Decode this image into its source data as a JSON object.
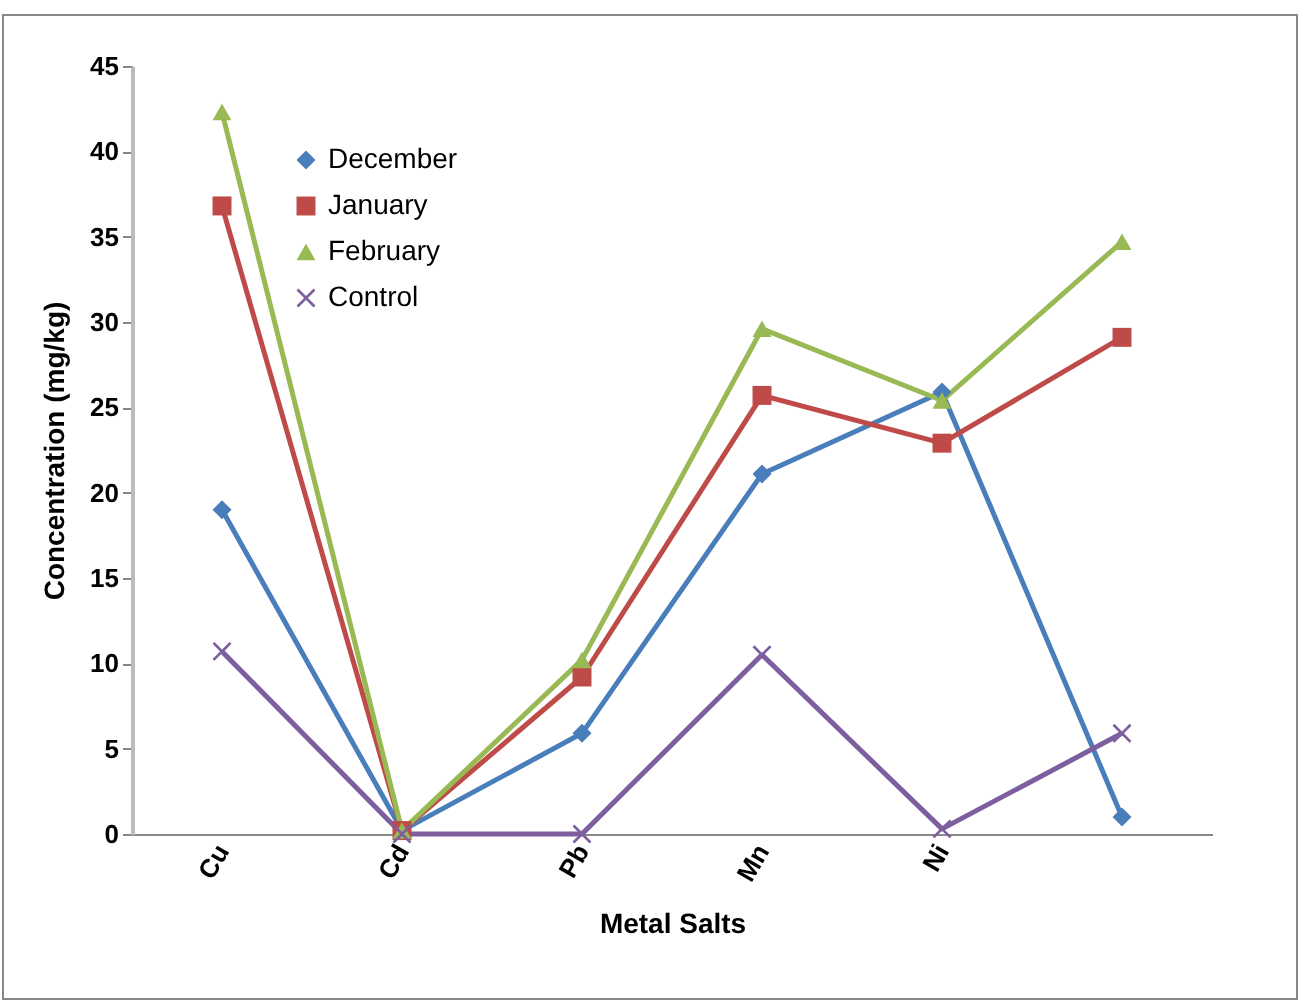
{
  "chart_data": {
    "type": "line",
    "xlabel": "Metal Salts",
    "ylabel": "Concentration (mg/kg)",
    "categories": [
      "Cu",
      "Cd",
      "Pb",
      "Mn",
      "Ni",
      null
    ],
    "ylim": [
      0,
      45
    ],
    "yticks": [
      0,
      5,
      10,
      15,
      20,
      25,
      30,
      35,
      40,
      45
    ],
    "grid": false,
    "legend": "top left",
    "series": [
      {
        "name": "December",
        "color": "#4a7ebb",
        "marker": "diamond",
        "values": [
          19,
          0.2,
          5.9,
          21.1,
          25.9,
          1.0
        ]
      },
      {
        "name": "January",
        "color": "#be4b48",
        "marker": "square",
        "values": [
          36.8,
          0.2,
          9.2,
          25.7,
          22.9,
          29.1
        ]
      },
      {
        "name": "February",
        "color": "#98b954",
        "marker": "triangle",
        "values": [
          42.3,
          0.2,
          10.2,
          29.6,
          25.4,
          34.7
        ]
      },
      {
        "name": "Control",
        "color": "#7d5fa0",
        "marker": "cross",
        "values": [
          10.7,
          0,
          0,
          10.5,
          0.3,
          5.9
        ]
      }
    ]
  }
}
